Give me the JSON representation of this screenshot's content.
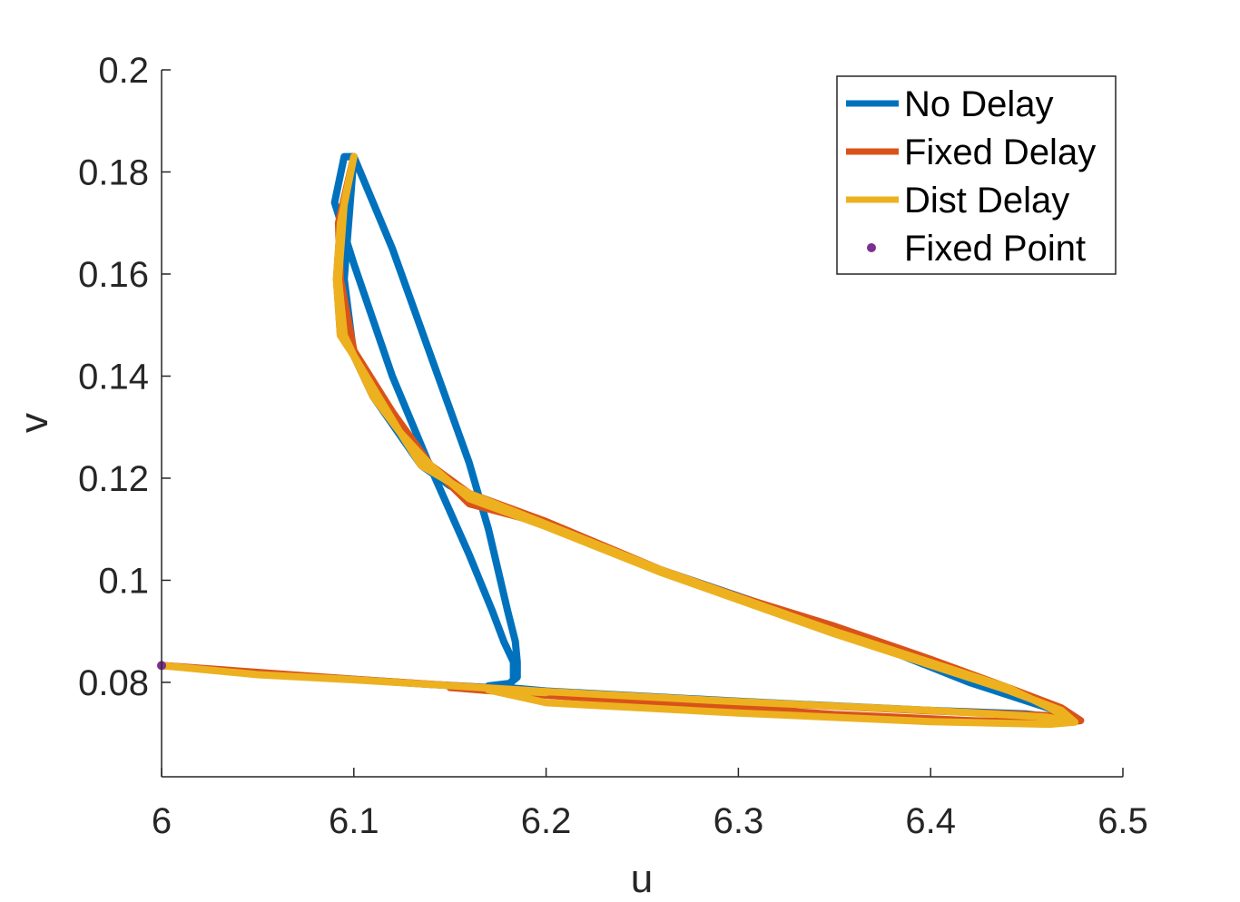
{
  "chart_data": {
    "type": "line",
    "title": "",
    "xlabel": "u",
    "ylabel": "v",
    "xlim": [
      6.0,
      6.5
    ],
    "ylim": [
      0.0615,
      0.2
    ],
    "xticks": [
      6.0,
      6.1,
      6.2,
      6.3,
      6.4,
      6.5
    ],
    "xtick_labels": [
      "6",
      "6.1",
      "6.2",
      "6.3",
      "6.4",
      "6.5"
    ],
    "yticks": [
      0.08,
      0.1,
      0.12,
      0.14,
      0.16,
      0.18,
      0.2
    ],
    "ytick_labels": [
      "0.08",
      "0.1",
      "0.12",
      "0.14",
      "0.16",
      "0.18",
      "0.2"
    ],
    "grid": false,
    "legend_position": "top-right",
    "series": [
      {
        "name": "No Delay",
        "color": "#0072BD",
        "points": [
          [
            6.0,
            0.0833
          ],
          [
            6.05,
            0.0818
          ],
          [
            6.1,
            0.0806
          ],
          [
            6.14,
            0.0796
          ],
          [
            6.17,
            0.079
          ],
          [
            6.18,
            0.0794
          ],
          [
            6.183,
            0.0805
          ],
          [
            6.183,
            0.084
          ],
          [
            6.178,
            0.088
          ],
          [
            6.172,
            0.094
          ],
          [
            6.16,
            0.105
          ],
          [
            6.14,
            0.122
          ],
          [
            6.12,
            0.14
          ],
          [
            6.1,
            0.162
          ],
          [
            6.09,
            0.174
          ],
          [
            6.095,
            0.183
          ],
          [
            6.1,
            0.183
          ],
          [
            6.12,
            0.165
          ],
          [
            6.14,
            0.144
          ],
          [
            6.16,
            0.123
          ],
          [
            6.17,
            0.11
          ],
          [
            6.18,
            0.094
          ],
          [
            6.184,
            0.088
          ],
          [
            6.185,
            0.084
          ],
          [
            6.185,
            0.081
          ],
          [
            6.181,
            0.0798
          ],
          [
            6.17,
            0.0793
          ],
          [
            6.2,
            0.0783
          ],
          [
            6.3,
            0.0763
          ],
          [
            6.4,
            0.0745
          ],
          [
            6.45,
            0.0738
          ],
          [
            6.472,
            0.0729
          ],
          [
            6.465,
            0.0745
          ],
          [
            6.42,
            0.08
          ],
          [
            6.35,
            0.0905
          ],
          [
            6.26,
            0.102
          ],
          [
            6.2,
            0.111
          ],
          [
            6.15,
            0.1185
          ],
          [
            6.135,
            0.1225
          ],
          [
            6.11,
            0.136
          ],
          [
            6.1,
            0.144
          ],
          [
            6.095,
            0.159
          ],
          [
            6.1,
            0.183
          ]
        ]
      },
      {
        "name": "Fixed Delay",
        "color": "#D95319",
        "points": [
          [
            6.0,
            0.0833
          ],
          [
            6.1,
            0.0806
          ],
          [
            6.2,
            0.0782
          ],
          [
            6.3,
            0.0762
          ],
          [
            6.4,
            0.0744
          ],
          [
            6.46,
            0.0735
          ],
          [
            6.478,
            0.0725
          ],
          [
            6.47,
            0.0745
          ],
          [
            6.44,
            0.079
          ],
          [
            6.4,
            0.0845
          ],
          [
            6.35,
            0.091
          ],
          [
            6.3,
            0.0968
          ],
          [
            6.26,
            0.102
          ],
          [
            6.2,
            0.1115
          ],
          [
            6.16,
            0.117
          ],
          [
            6.14,
            0.1225
          ],
          [
            6.12,
            0.133
          ],
          [
            6.1,
            0.145
          ],
          [
            6.093,
            0.159
          ],
          [
            6.092,
            0.17
          ],
          [
            6.1,
            0.183
          ],
          [
            6.093,
            0.17
          ],
          [
            6.091,
            0.159
          ],
          [
            6.093,
            0.148
          ],
          [
            6.1,
            0.144
          ],
          [
            6.11,
            0.136
          ],
          [
            6.124,
            0.129
          ],
          [
            6.14,
            0.1225
          ],
          [
            6.16,
            0.115
          ],
          [
            6.2,
            0.111
          ],
          [
            6.26,
            0.102
          ],
          [
            6.35,
            0.09
          ],
          [
            6.44,
            0.079
          ],
          [
            6.468,
            0.075
          ],
          [
            6.478,
            0.0725
          ],
          [
            6.465,
            0.072
          ],
          [
            6.42,
            0.0725
          ],
          [
            6.35,
            0.0737
          ],
          [
            6.3,
            0.075
          ],
          [
            6.25,
            0.0762
          ],
          [
            6.2,
            0.0775
          ],
          [
            6.15,
            0.079
          ],
          [
            6.17,
            0.0785
          ],
          [
            6.2,
            0.0782
          ]
        ]
      },
      {
        "name": "Dist Delay",
        "color": "#EDB120",
        "points": [
          [
            6.0,
            0.0833
          ],
          [
            6.05,
            0.0815
          ],
          [
            6.1,
            0.0805
          ],
          [
            6.2,
            0.0782
          ],
          [
            6.3,
            0.0762
          ],
          [
            6.4,
            0.0745
          ],
          [
            6.46,
            0.0732
          ],
          [
            6.475,
            0.0722
          ],
          [
            6.462,
            0.075
          ],
          [
            6.44,
            0.079
          ],
          [
            6.35,
            0.09
          ],
          [
            6.26,
            0.102
          ],
          [
            6.2,
            0.111
          ],
          [
            6.16,
            0.117
          ],
          [
            6.135,
            0.1225
          ],
          [
            6.124,
            0.129
          ],
          [
            6.11,
            0.136
          ],
          [
            6.1,
            0.144
          ],
          [
            6.093,
            0.148
          ],
          [
            6.091,
            0.159
          ],
          [
            6.093,
            0.17
          ],
          [
            6.1,
            0.183
          ],
          [
            6.095,
            0.174
          ],
          [
            6.092,
            0.159
          ],
          [
            6.095,
            0.148
          ],
          [
            6.1,
            0.144
          ],
          [
            6.124,
            0.129
          ],
          [
            6.14,
            0.1225
          ],
          [
            6.16,
            0.116
          ],
          [
            6.2,
            0.1105
          ],
          [
            6.26,
            0.1015
          ],
          [
            6.35,
            0.0895
          ],
          [
            6.44,
            0.0785
          ],
          [
            6.468,
            0.0745
          ],
          [
            6.475,
            0.0722
          ],
          [
            6.462,
            0.0718
          ],
          [
            6.4,
            0.0723
          ],
          [
            6.3,
            0.074
          ],
          [
            6.2,
            0.076
          ],
          [
            6.17,
            0.0785
          ],
          [
            6.2,
            0.078
          ]
        ]
      }
    ],
    "fixed_point": {
      "name": "Fixed Point",
      "color": "#7E2F8E",
      "u": 6.0,
      "v": 0.0833
    }
  }
}
